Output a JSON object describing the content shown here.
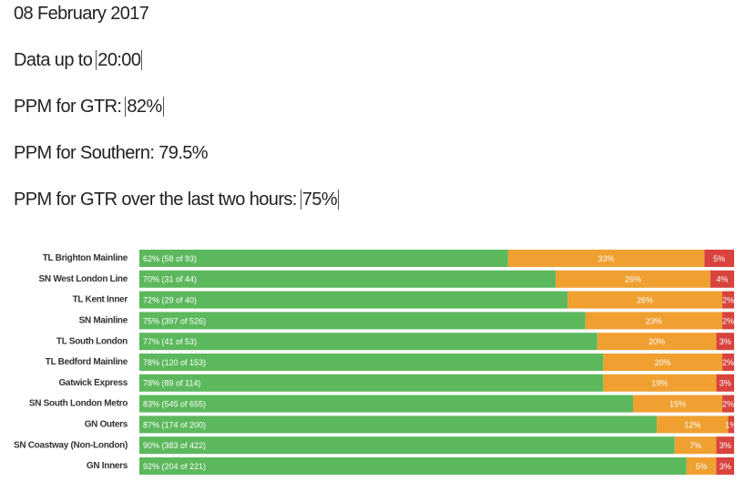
{
  "header": {
    "lines": [
      {
        "label": "08 February 2017"
      },
      {
        "label": "Data up to",
        "value": "20:00"
      },
      {
        "label": "PPM for GTR:",
        "value": "82%"
      },
      {
        "label": "PPM for Southern: 79.5%"
      },
      {
        "label": "PPM for GTR over the last two hours:",
        "value": "75%"
      }
    ]
  },
  "chart_data": {
    "type": "stacked-bar",
    "categories": [
      "TL Brighton Mainline",
      "SN West London Line",
      "TL Kent Inner",
      "SN Mainline",
      "TL South London",
      "TL Bedford Mainline",
      "Gatwick Express",
      "SN South London Metro",
      "GN Outers",
      "SN Coastway (Non-London)",
      "GN Inners"
    ],
    "xlim": [
      0,
      100
    ],
    "series": [
      {
        "color": "#5cb85c",
        "values": [
          62,
          70,
          72,
          75,
          77,
          78,
          78,
          83,
          87,
          90,
          92
        ],
        "value_labels": [
          "62% (58 of 93)",
          "70% (31 of 44)",
          "72% (29 of 40)",
          "75% (397 of 526)",
          "77% (41 of 53)",
          "78% (120 of 153)",
          "78% (89 of 114)",
          "83% (545 of 655)",
          "87% (174 of 200)",
          "90% (383 of 422)",
          "92% (204 of 221)"
        ]
      },
      {
        "color": "#f0a030",
        "values": [
          33,
          26,
          26,
          23,
          20,
          20,
          19,
          15,
          12,
          7,
          5
        ],
        "value_labels": [
          "33%",
          "26%",
          "26%",
          "23%",
          "20%",
          "20%",
          "19%",
          "15%",
          "12%",
          "7%",
          "5%"
        ]
      },
      {
        "color": "#d9433e",
        "values": [
          5,
          4,
          2,
          2,
          3,
          2,
          3,
          2,
          1,
          3,
          3
        ],
        "value_labels": [
          "5%",
          "4%",
          "2%",
          "2%",
          "3%",
          "2%",
          "3%",
          "2%",
          "1%",
          "3%",
          "3%"
        ]
      }
    ]
  }
}
